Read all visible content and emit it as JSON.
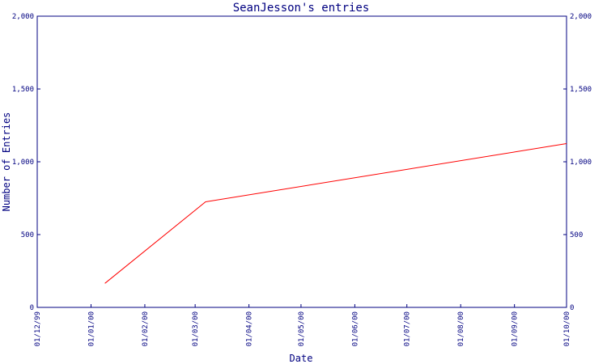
{
  "chart_data": {
    "type": "line",
    "title": "SeanJesson's entries",
    "xlabel": "Date",
    "ylabel": "Number of Entries",
    "ylim": [
      0,
      2000
    ],
    "y_ticks": [
      0,
      500,
      1000,
      1500,
      2000
    ],
    "y_tick_labels": [
      "0",
      "500",
      "1,000",
      "1,500",
      "2,000"
    ],
    "y_axes": "left-and-right",
    "x_ticks": [
      "01/12/99",
      "01/01/00",
      "01/02/00",
      "01/03/00",
      "01/04/00",
      "01/05/00",
      "01/06/00",
      "01/07/00",
      "01/08/00",
      "01/09/00",
      "01/10/00"
    ],
    "grid": false,
    "legend": "none",
    "series": [
      {
        "x": [
          "2000-01-09",
          "2000-03-07",
          "2000-10-01"
        ],
        "y": [
          165,
          725,
          1125
        ]
      }
    ],
    "colors": {
      "line": "#ff0000",
      "axes": "#000080",
      "text": "#000080",
      "background": "#ffffff"
    }
  }
}
